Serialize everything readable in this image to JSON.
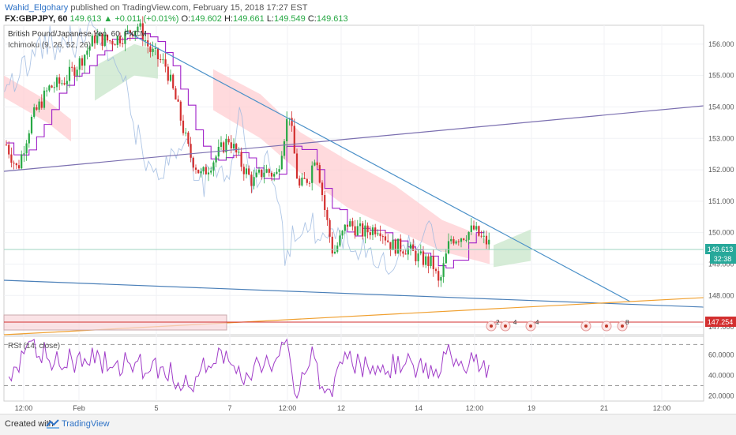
{
  "header": {
    "author": "Wahid_Elgohary",
    "published": "published on TradingView.com, February 15, 2018 17:27 EST"
  },
  "quote": {
    "symbol": "FX:GBPJPY, 60",
    "price": "149.613",
    "change": "+0.011 (+0.01%)",
    "o_label": "O:",
    "o": "149.602",
    "h_label": "H:",
    "h": "149.661",
    "l_label": "L:",
    "l": "149.549",
    "c_label": "C:",
    "c": "149.613"
  },
  "colors": {
    "up": "#27a844",
    "down": "#d32f2f",
    "trendline_blue": "#4a90c8",
    "trendline_purple": "#7b6fb0",
    "support_orange": "#f0a030",
    "ichimoku_base": "#a020c8",
    "cloud_bull": "#c8e6c9",
    "cloud_bear": "#ffcdd2",
    "rsi_line": "#a03cc8"
  },
  "chart_data": [
    {
      "type": "candlestick",
      "title": "British Pound/Japanese Yen, 60, FXCM",
      "indicator": "Ichimoku (9, 26, 52, 26)",
      "ylim": [
        146.75,
        156.6
      ],
      "y_ticks": [
        "156.000",
        "155.000",
        "154.000",
        "153.000",
        "152.000",
        "151.000",
        "150.000",
        "149.000",
        "148.000",
        "147.000"
      ],
      "x_ticks": [
        "12:00",
        "Feb",
        "5",
        "7",
        "12:00",
        "12",
        "14",
        "12:00",
        "19",
        "21",
        "12:00"
      ],
      "last_price_label": "149.613",
      "countdown_label": "32:38",
      "red_level_label": "147.254",
      "red_level": 147.254,
      "grid": true,
      "events": [
        "2",
        "4",
        "4",
        "8"
      ]
    },
    {
      "type": "line",
      "title": "RSI (14, close)",
      "ylim": [
        15,
        78
      ],
      "y_ticks": [
        "60.0000",
        "40.0000",
        "20.0000"
      ],
      "levels": [
        70,
        30
      ]
    }
  ]
}
